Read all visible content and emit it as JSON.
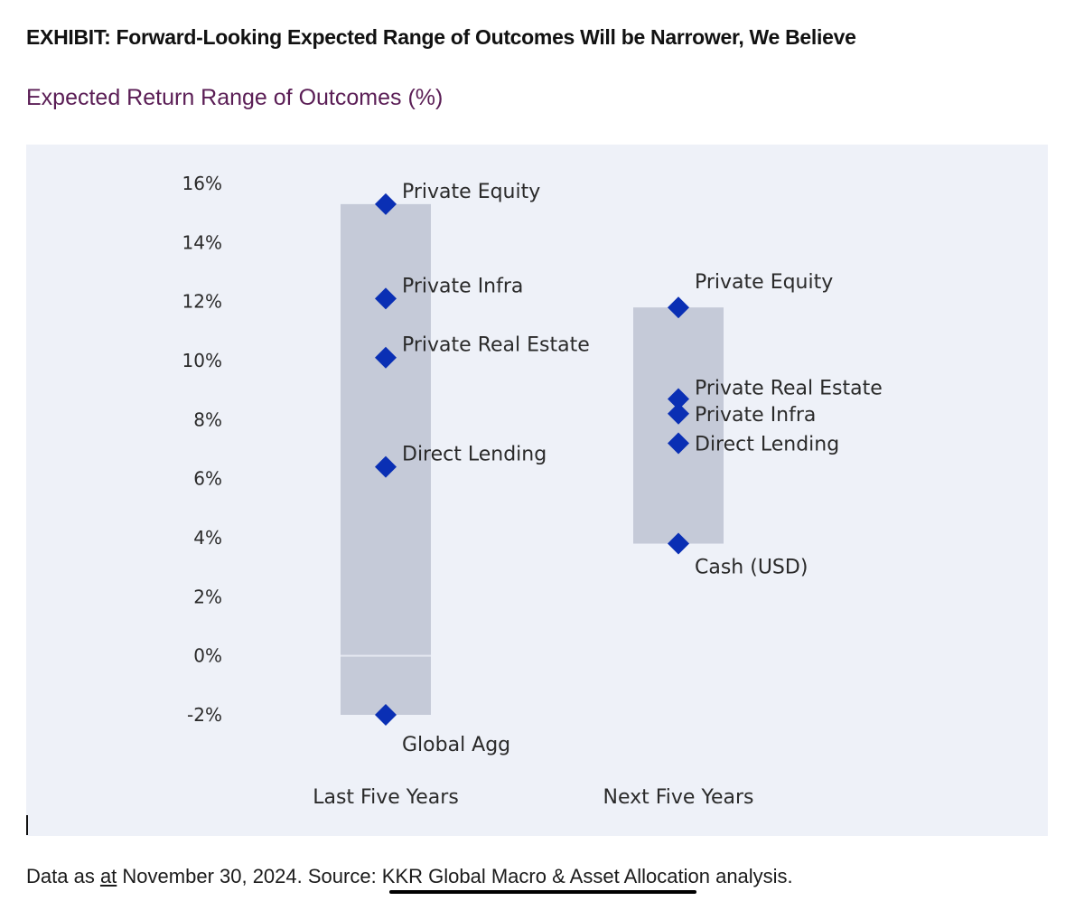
{
  "exhibit_title": "EXHIBIT: Forward-Looking Expected Range of Outcomes Will be Narrower, We Believe",
  "source": {
    "prefix": "Data as ",
    "underlined_word": "at",
    "rest": " November 30, 2024. Source: KKR Global Macro & Asset Allocation analysis."
  },
  "colors": {
    "title": "#111111",
    "subtitle": "#5a1d55",
    "background": "#eef1f8",
    "range_bar": "#c5cad8",
    "marker": "#0a2fb4",
    "text": "#2a2a2a"
  },
  "chart_data": {
    "type": "range",
    "title": "Expected Return Range of Outcomes (%)",
    "xlabel": "",
    "ylabel": "",
    "ylim": [
      -2,
      16
    ],
    "yticks": [
      16,
      14,
      12,
      10,
      8,
      6,
      4,
      2,
      0,
      -2
    ],
    "ytick_labels": [
      "16%",
      "14%",
      "12%",
      "10%",
      "8%",
      "6%",
      "4%",
      "2%",
      "0%",
      "-2%"
    ],
    "grid": false,
    "legend": "none",
    "categories": [
      "Last Five Years",
      "Next Five Years"
    ],
    "groups": [
      {
        "category": "Last Five Years",
        "range": [
          -2.0,
          15.3
        ],
        "points": [
          {
            "label": "Private Equity",
            "value": 15.3
          },
          {
            "label": "Private Infra",
            "value": 12.1
          },
          {
            "label": "Private Real Estate",
            "value": 10.1
          },
          {
            "label": "Direct Lending",
            "value": 6.4
          },
          {
            "label": "Global Agg",
            "value": -2.0
          }
        ]
      },
      {
        "category": "Next Five Years",
        "range": [
          3.8,
          11.8
        ],
        "points": [
          {
            "label": "Private Equity",
            "value": 11.8
          },
          {
            "label": "Private Real Estate",
            "value": 8.7
          },
          {
            "label": "Private Infra",
            "value": 8.2
          },
          {
            "label": "Direct Lending",
            "value": 7.2
          },
          {
            "label": "Cash (USD)",
            "value": 3.8
          }
        ]
      }
    ]
  }
}
